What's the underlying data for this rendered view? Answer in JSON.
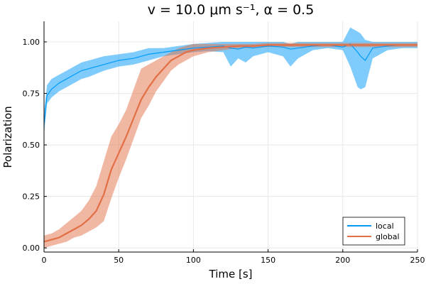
{
  "chart_data": {
    "type": "line",
    "title": "v = 10.0 μm s⁻¹, α = 0.5",
    "xlabel": "Time [s]",
    "ylabel": "Polarization",
    "xlim": [
      0,
      250
    ],
    "ylim": [
      -0.02,
      1.1
    ],
    "xticks": [
      0,
      50,
      100,
      150,
      200,
      250
    ],
    "xtick_labels": [
      "0",
      "50",
      "100",
      "150",
      "200",
      "250"
    ],
    "yticks": [
      0,
      0.25,
      0.5,
      0.75,
      1.0
    ],
    "ytick_labels": [
      "0.00",
      "0.25",
      "0.50",
      "0.75",
      "1.00"
    ],
    "grid": true,
    "legend_position": "bottom-right",
    "series": [
      {
        "name": "local",
        "color": "#009AFA",
        "x": [
          0,
          2,
          5,
          10,
          15,
          20,
          25,
          30,
          40,
          50,
          60,
          70,
          80,
          90,
          100,
          110,
          120,
          125,
          130,
          135,
          140,
          150,
          160,
          165,
          170,
          180,
          190,
          200,
          205,
          210,
          212,
          215,
          220,
          230,
          240,
          250
        ],
        "y": [
          0.6,
          0.74,
          0.77,
          0.8,
          0.82,
          0.84,
          0.86,
          0.87,
          0.89,
          0.91,
          0.92,
          0.94,
          0.95,
          0.96,
          0.97,
          0.975,
          0.98,
          0.97,
          0.965,
          0.975,
          0.97,
          0.98,
          0.975,
          0.965,
          0.97,
          0.98,
          0.985,
          0.975,
          0.99,
          0.95,
          0.93,
          0.91,
          0.97,
          0.98,
          0.985,
          0.985
        ],
        "lower": [
          0.55,
          0.7,
          0.73,
          0.76,
          0.78,
          0.8,
          0.82,
          0.83,
          0.86,
          0.88,
          0.89,
          0.91,
          0.93,
          0.94,
          0.95,
          0.955,
          0.95,
          0.88,
          0.92,
          0.9,
          0.93,
          0.95,
          0.93,
          0.88,
          0.92,
          0.96,
          0.97,
          0.96,
          0.88,
          0.78,
          0.77,
          0.78,
          0.92,
          0.96,
          0.97,
          0.97
        ],
        "upper": [
          0.66,
          0.79,
          0.82,
          0.84,
          0.86,
          0.88,
          0.9,
          0.91,
          0.93,
          0.94,
          0.95,
          0.97,
          0.97,
          0.98,
          0.99,
          0.995,
          1.0,
          1.0,
          1.0,
          1.0,
          1.0,
          1.0,
          1.0,
          0.99,
          1.0,
          1.0,
          1.0,
          1.0,
          1.07,
          1.05,
          1.04,
          1.01,
          1.0,
          1.0,
          1.0,
          1.0
        ]
      },
      {
        "name": "global",
        "color": "#E26F46",
        "x": [
          0,
          5,
          10,
          15,
          20,
          25,
          30,
          35,
          40,
          45,
          50,
          55,
          60,
          65,
          70,
          75,
          80,
          85,
          90,
          95,
          100,
          110,
          120,
          130,
          140,
          150,
          175,
          200,
          225,
          250
        ],
        "y": [
          0.03,
          0.04,
          0.05,
          0.07,
          0.09,
          0.11,
          0.14,
          0.18,
          0.26,
          0.38,
          0.46,
          0.54,
          0.63,
          0.72,
          0.78,
          0.83,
          0.87,
          0.91,
          0.93,
          0.95,
          0.96,
          0.97,
          0.975,
          0.98,
          0.98,
          0.985,
          0.985,
          0.985,
          0.985,
          0.985
        ],
        "lower": [
          0.0,
          0.01,
          0.02,
          0.03,
          0.05,
          0.06,
          0.08,
          0.1,
          0.13,
          0.24,
          0.34,
          0.43,
          0.53,
          0.63,
          0.69,
          0.76,
          0.81,
          0.86,
          0.89,
          0.91,
          0.93,
          0.95,
          0.96,
          0.97,
          0.97,
          0.975,
          0.975,
          0.975,
          0.975,
          0.975
        ],
        "upper": [
          0.06,
          0.07,
          0.09,
          0.12,
          0.15,
          0.18,
          0.23,
          0.3,
          0.42,
          0.54,
          0.6,
          0.67,
          0.77,
          0.87,
          0.89,
          0.91,
          0.93,
          0.95,
          0.97,
          0.98,
          0.99,
          0.99,
          0.99,
          0.99,
          0.99,
          0.995,
          0.995,
          0.995,
          0.995,
          0.995
        ]
      }
    ]
  }
}
